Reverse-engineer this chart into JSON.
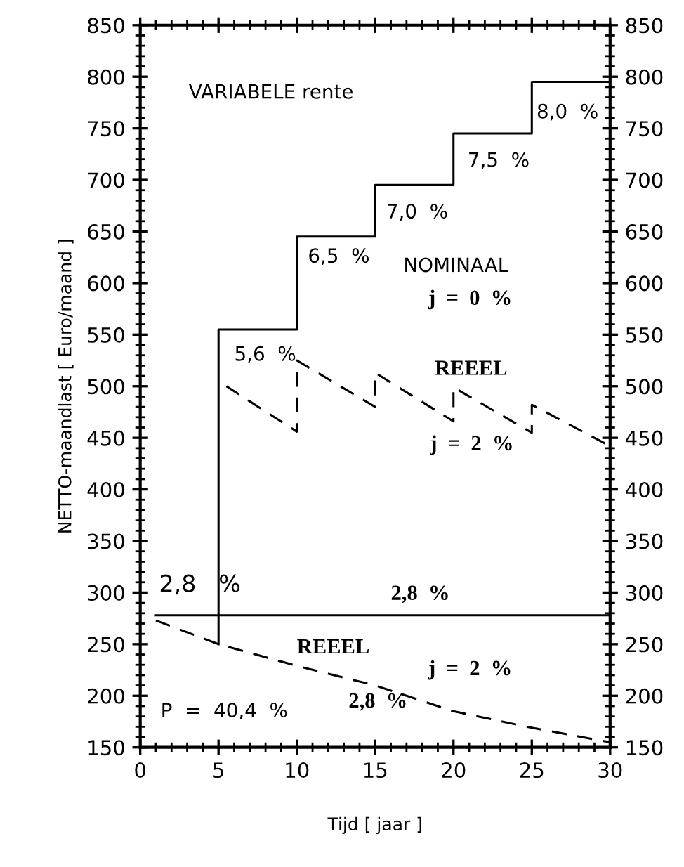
{
  "chart_data": {
    "type": "line",
    "xlabel": "Tijd [ jaar ]",
    "ylabel": "NETTO-maandlast [ Euro/maand ]",
    "xlim": [
      0,
      30
    ],
    "xticks": [
      0,
      5,
      10,
      15,
      20,
      25,
      30
    ],
    "ylim": [
      150,
      850
    ],
    "yticks": [
      150,
      200,
      250,
      300,
      350,
      400,
      450,
      500,
      550,
      600,
      650,
      700,
      750,
      800,
      850
    ],
    "y2lim": [
      150,
      850
    ],
    "y2ticks": [
      150,
      200,
      250,
      300,
      350,
      400,
      450,
      500,
      550,
      600,
      650,
      700,
      750,
      800,
      850
    ],
    "grid": false,
    "legend": false,
    "series": [
      {
        "type": "step",
        "color": "#000000",
        "line_style": "solid",
        "x": [
          5,
          5,
          10,
          15,
          20,
          25,
          30
        ],
        "values": [
          250,
          555,
          645,
          695,
          745,
          795,
          795
        ]
      },
      {
        "color": "#000000",
        "line_style": "solid",
        "x": [
          1,
          30
        ],
        "values": [
          278,
          278
        ]
      },
      {
        "color": "#000000",
        "line_style": "dashed",
        "x": [
          1,
          5,
          10,
          15,
          20,
          25,
          30
        ],
        "values": [
          273,
          250,
          229,
          210,
          185,
          169,
          155
        ]
      },
      {
        "color": "#000000",
        "line_style": "dashed",
        "x": [
          5.5,
          10,
          10,
          15,
          15,
          20,
          20,
          25,
          25,
          30
        ],
        "values": [
          500,
          456,
          525,
          480,
          513,
          466,
          499,
          455,
          482,
          442
        ]
      }
    ],
    "annotations": [
      "VARIABELE rente",
      "8,0  %",
      "7,5  %",
      "7,0  %",
      "6,5  %",
      "NOMINAAL",
      "j  =  0  %",
      "5,6  %",
      "REEEL",
      "j  =  2  %",
      "2,8   %",
      "2,8  %",
      "REEEL",
      "j  =  2  %",
      "P  =  40,4  %",
      "2,8  %"
    ]
  }
}
